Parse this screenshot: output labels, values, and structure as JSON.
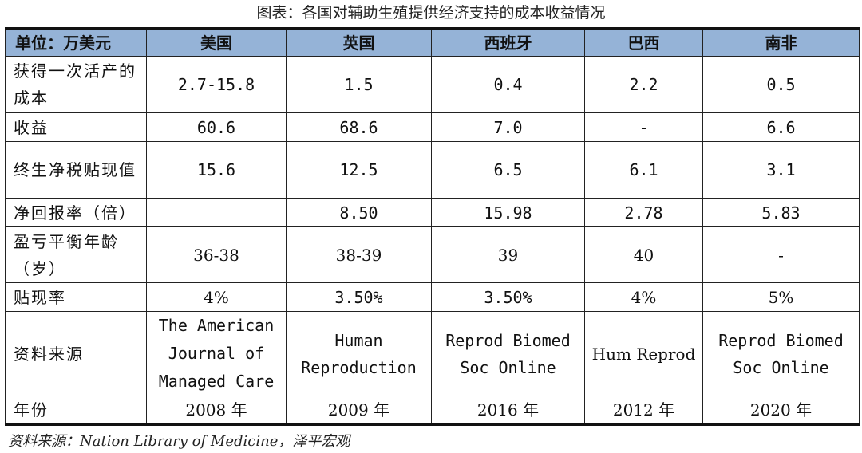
{
  "title": "图表：各国对辅助生殖提供经济支持的成本收益情况",
  "header": [
    "单位：万美元",
    "美国",
    "英国",
    "西班牙",
    "巴西",
    "南非"
  ],
  "rows": [
    {
      "label": "获得一次活产的成本",
      "values": [
        "2.7-15.8",
        "1.5",
        "0.4",
        "2.2",
        "0.5"
      ]
    },
    {
      "label": "收益",
      "values": [
        "60.6",
        "68.6",
        "7.0",
        "-",
        "6.6"
      ]
    },
    {
      "label": "终生净税贴现值",
      "values": [
        "15.6",
        "12.5",
        "6.5",
        "6.1",
        "3.1"
      ]
    },
    {
      "label": "净回报率（倍）",
      "values": [
        "",
        "8.50",
        "15.98",
        "2.78",
        "5.83"
      ]
    },
    {
      "label": "盈亏平衡年龄（岁）",
      "values": [
        "36-38",
        "38-39",
        "39",
        "40",
        "-"
      ]
    },
    {
      "label": "贴现率",
      "values": [
        "4%",
        "3.50%",
        "3.50%",
        "4%",
        "5%"
      ]
    },
    {
      "label": "资料来源",
      "values": [
        "The American Journal of Managed Care",
        "Human Reproduction",
        "Reprod Biomed Soc Online",
        "Hum Reprod",
        "Reprod Biomed Soc Online"
      ]
    },
    {
      "label": "年份",
      "values": [
        "2008 年",
        "2009 年",
        "2016 年",
        "2012 年",
        "2020 年"
      ]
    }
  ],
  "footer": "资料来源：Nation Library of Medicine，泽平宏观"
}
